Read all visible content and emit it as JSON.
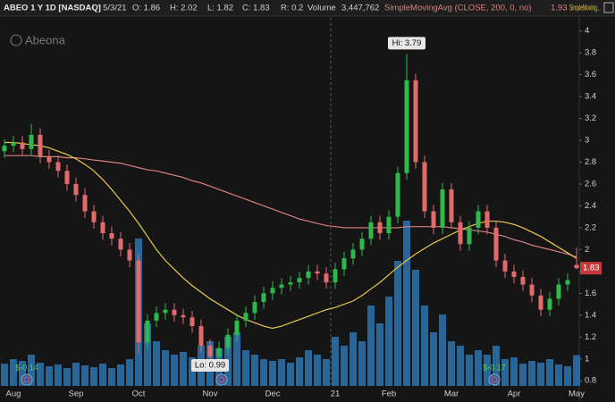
{
  "chart_data": {
    "type": "candlestick",
    "title": "ABEO 1 Y 1D [NASDAQ]",
    "header": {
      "fields": [
        "D: 5/3/21",
        "O: 1.86",
        "H: 2.02",
        "L: 1.82",
        "C: 1.83",
        "R: 0.2"
      ],
      "volume_label": "3,447,762"
    },
    "logo": "Abeona",
    "categories": [
      null,
      "Aug",
      null,
      null,
      null,
      null,
      null,
      null,
      "Sep",
      null,
      null,
      null,
      null,
      null,
      null,
      "Oct",
      null,
      null,
      null,
      null,
      null,
      null,
      null,
      "Nov",
      null,
      null,
      null,
      null,
      null,
      null,
      "Dec",
      null,
      null,
      null,
      null,
      null,
      null,
      "21",
      null,
      null,
      null,
      null,
      null,
      "Feb",
      null,
      null,
      null,
      null,
      null,
      null,
      "Mar",
      null,
      null,
      null,
      null,
      null,
      null,
      "Apr",
      null,
      null,
      null,
      null,
      null,
      null,
      "May"
    ],
    "open": [
      2.9,
      2.95,
      2.98,
      2.92,
      3.05,
      2.85,
      2.8,
      2.72,
      2.6,
      2.5,
      2.35,
      2.25,
      2.15,
      2.1,
      2.0,
      1.9,
      1.15,
      1.35,
      1.42,
      1.45,
      1.4,
      1.38,
      1.3,
      1.12,
      1.02,
      1.1,
      1.22,
      1.35,
      1.42,
      1.52,
      1.6,
      1.65,
      1.68,
      1.7,
      1.74,
      1.8,
      1.78,
      1.7,
      1.82,
      1.92,
      2.0,
      2.1,
      2.25,
      2.15,
      2.3,
      2.7,
      3.55,
      2.8,
      2.35,
      2.2,
      2.55,
      2.25,
      2.05,
      2.2,
      2.35,
      2.2,
      1.9,
      1.8,
      1.75,
      1.68,
      1.58,
      1.45,
      1.55,
      1.68,
      1.86
    ],
    "high": [
      3.01,
      3.04,
      3.04,
      3.15,
      3.11,
      2.91,
      2.86,
      2.78,
      2.66,
      2.56,
      2.41,
      2.31,
      2.21,
      2.16,
      2.06,
      1.96,
      1.41,
      1.48,
      1.51,
      1.51,
      1.46,
      1.44,
      1.36,
      1.18,
      1.16,
      1.28,
      1.41,
      1.48,
      1.58,
      1.66,
      1.71,
      1.74,
      1.76,
      1.8,
      1.86,
      1.86,
      1.84,
      1.88,
      1.98,
      2.06,
      2.16,
      2.31,
      2.31,
      2.36,
      2.76,
      3.79,
      3.61,
      2.86,
      2.41,
      2.61,
      2.61,
      2.31,
      2.26,
      2.41,
      2.41,
      2.26,
      1.96,
      1.86,
      1.81,
      1.74,
      1.64,
      1.61,
      1.74,
      1.78,
      2.02
    ],
    "low": [
      2.84,
      2.89,
      2.86,
      2.86,
      2.79,
      2.74,
      2.66,
      2.54,
      2.44,
      2.29,
      2.19,
      2.09,
      2.04,
      1.94,
      1.84,
      1.05,
      1.09,
      1.29,
      1.36,
      1.34,
      1.32,
      1.24,
      1.06,
      0.99,
      1.0,
      1.04,
      1.16,
      1.29,
      1.36,
      1.46,
      1.54,
      1.59,
      1.62,
      1.64,
      1.68,
      1.72,
      1.64,
      1.64,
      1.76,
      1.86,
      1.94,
      2.04,
      2.09,
      2.09,
      2.24,
      2.64,
      2.74,
      2.29,
      2.14,
      2.14,
      2.19,
      1.99,
      1.99,
      2.14,
      2.14,
      1.84,
      1.74,
      1.69,
      1.62,
      1.52,
      1.39,
      1.39,
      1.49,
      1.62,
      1.82
    ],
    "close": [
      2.95,
      2.98,
      2.92,
      3.05,
      2.85,
      2.8,
      2.72,
      2.6,
      2.5,
      2.35,
      2.25,
      2.15,
      2.1,
      2.0,
      1.9,
      1.15,
      1.35,
      1.42,
      1.45,
      1.4,
      1.38,
      1.3,
      1.12,
      1.02,
      1.1,
      1.22,
      1.35,
      1.42,
      1.52,
      1.6,
      1.65,
      1.68,
      1.7,
      1.74,
      1.8,
      1.78,
      1.7,
      1.82,
      1.92,
      2.0,
      2.1,
      2.25,
      2.15,
      2.3,
      2.7,
      3.55,
      2.8,
      2.35,
      2.2,
      2.55,
      2.25,
      2.05,
      2.2,
      2.35,
      2.2,
      1.9,
      1.8,
      1.75,
      1.68,
      1.58,
      1.45,
      1.55,
      1.68,
      1.72,
      1.83
    ],
    "up_color": "#2fb84c",
    "down_color": "#e26a6a",
    "series": [
      {
        "name": "SimpleMovingAvg (CLOSE, 200, 0, no)",
        "color": "#d98080",
        "values": [
          2.86,
          2.86,
          2.86,
          2.86,
          2.85,
          2.85,
          2.85,
          2.84,
          2.84,
          2.83,
          2.82,
          2.81,
          2.8,
          2.79,
          2.77,
          2.75,
          2.73,
          2.72,
          2.7,
          2.68,
          2.66,
          2.63,
          2.61,
          2.58,
          2.55,
          2.52,
          2.49,
          2.46,
          2.43,
          2.4,
          2.37,
          2.34,
          2.31,
          2.28,
          2.26,
          2.24,
          2.22,
          2.21,
          2.2,
          2.2,
          2.2,
          2.2,
          2.2,
          2.2,
          2.2,
          2.21,
          2.21,
          2.21,
          2.21,
          2.21,
          2.2,
          2.19,
          2.18,
          2.17,
          2.16,
          2.14,
          2.12,
          2.09,
          2.07,
          2.04,
          2.02,
          2.0,
          1.98,
          1.96,
          1.93
        ]
      },
      {
        "name": "SimpleMoving...",
        "color": "#e8c84a",
        "values": [
          2.98,
          2.98,
          2.97,
          2.96,
          2.95,
          2.93,
          2.9,
          2.87,
          2.83,
          2.78,
          2.72,
          2.64,
          2.55,
          2.45,
          2.35,
          2.24,
          2.12,
          2.0,
          1.9,
          1.82,
          1.74,
          1.67,
          1.61,
          1.55,
          1.5,
          1.45,
          1.4,
          1.36,
          1.33,
          1.3,
          1.28,
          1.3,
          1.33,
          1.36,
          1.39,
          1.42,
          1.45,
          1.47,
          1.5,
          1.53,
          1.58,
          1.64,
          1.7,
          1.77,
          1.84,
          1.9,
          1.96,
          2.01,
          2.06,
          2.1,
          2.14,
          2.18,
          2.21,
          2.24,
          2.26,
          2.26,
          2.25,
          2.23,
          2.2,
          2.16,
          2.12,
          2.07,
          2.02,
          1.97,
          1.92
        ]
      }
    ],
    "volume": {
      "name": "Volume",
      "color": "#2a6fa8",
      "axis": "y2",
      "values": [
        2500000,
        3000000,
        2800000,
        3500000,
        2600000,
        2200000,
        2400000,
        2000000,
        2600000,
        2300000,
        2100000,
        2500000,
        2000000,
        2400000,
        3000000,
        16500000,
        7000000,
        5000000,
        4000000,
        3500000,
        3800000,
        3200000,
        4500000,
        5000000,
        4200000,
        5500000,
        6000000,
        4000000,
        3500000,
        3000000,
        2800000,
        3000000,
        2600000,
        3200000,
        4000000,
        3500000,
        3000000,
        5500000,
        4500000,
        6000000,
        5000000,
        9000000,
        7000000,
        10000000,
        14000000,
        18500000,
        13000000,
        9000000,
        6000000,
        8000000,
        5000000,
        4500000,
        3500000,
        4000000,
        3500000,
        4500000,
        3000000,
        3200000,
        2500000,
        2800000,
        2600000,
        3000000,
        2400000,
        2200000,
        3447762
      ]
    },
    "annotations": {
      "hi": "Hi: 3.79",
      "lo": "Lo: 0.99",
      "earnings": [
        "$-0.14",
        "$-0.17"
      ]
    },
    "ylim": [
      0.72,
      4.12
    ],
    "yticks": [
      0.8,
      1,
      1.2,
      1.4,
      1.6,
      1.8,
      2,
      2.2,
      2.4,
      2.6,
      2.8,
      3,
      3.2,
      3.4,
      3.6,
      3.8,
      4
    ],
    "y2lim": [
      0,
      40000000
    ]
  }
}
